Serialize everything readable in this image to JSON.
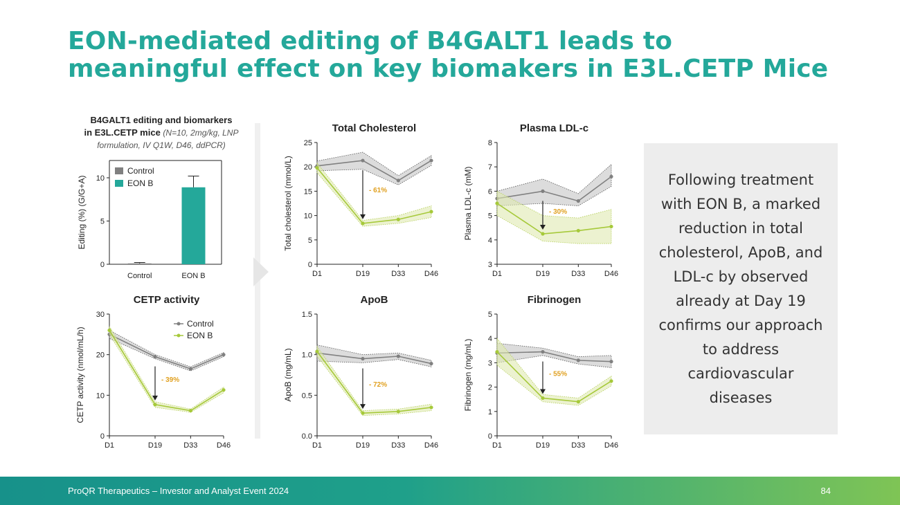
{
  "title": {
    "line1": "EON-mediated editing of B4GALT1 leads to",
    "line2": "meaningful effect on key biomakers in E3L.CETP Mice"
  },
  "bar_header": {
    "line1": "B4GALT1 editing and biomarkers",
    "line2_bold": "in E3L.CETP mice",
    "line2_italic": "(N=10, 2mg/kg, LNP",
    "line3": "formulation, IV Q1W, D46, ddPCR)"
  },
  "callout_text": "Following treatment with EON B, a marked reduction in total cholesterol, ApoB, and LDL-c by observed already at Day 19 confirms our approach to address cardiovascular diseases",
  "footer": {
    "text": "ProQR Therapeutics – Investor and Analyst Event 2024",
    "page": "84"
  },
  "colors": {
    "teal": "#24a89a",
    "control": "#808080",
    "eon": "#a6c93a",
    "pct": "#e0a020"
  },
  "chart_data": [
    {
      "id": "editing",
      "type": "bar",
      "title": "",
      "ylabel": "Editing (%) (G/G+A)",
      "categories": [
        "Control",
        "EON B"
      ],
      "values": [
        0.1,
        8.9
      ],
      "errors": [
        0.1,
        1.3
      ],
      "ylim": [
        0,
        12
      ],
      "yticks": [
        0,
        5,
        10
      ],
      "legend": [
        "Control",
        "EON B"
      ],
      "legend_position": "top-left"
    },
    {
      "id": "total-cholesterol",
      "type": "line",
      "title": "Total Cholesterol",
      "ylabel": "Total cholesterol (mmol/L)",
      "x": [
        "D1",
        "D19",
        "D33",
        "D46"
      ],
      "x_days": [
        1,
        19,
        33,
        46
      ],
      "ylim": [
        0,
        25
      ],
      "yticks": [
        0,
        5,
        10,
        15,
        20,
        25
      ],
      "series": [
        {
          "name": "Control",
          "values": [
            20.2,
            21.3,
            17.2,
            21.3
          ],
          "band": [
            [
              19.2,
              21.2
            ],
            [
              19.5,
              23.0
            ],
            [
              16.3,
              18.2
            ],
            [
              20.3,
              22.3
            ]
          ]
        },
        {
          "name": "EON B",
          "values": [
            19.8,
            8.4,
            9.2,
            10.8
          ],
          "band": [
            [
              18.8,
              20.8
            ],
            [
              7.8,
              9.0
            ],
            [
              8.4,
              10.0
            ],
            [
              9.6,
              12.0
            ]
          ]
        }
      ],
      "annotation": "- 61%"
    },
    {
      "id": "plasma-ldl",
      "type": "line",
      "title": "Plasma LDL-c",
      "ylabel": "Plasma LDL-c (mM)",
      "x": [
        "D1",
        "D19",
        "D33",
        "D46"
      ],
      "x_days": [
        1,
        19,
        33,
        46
      ],
      "ylim": [
        3,
        8
      ],
      "yticks": [
        3,
        4,
        5,
        6,
        7,
        8
      ],
      "series": [
        {
          "name": "Control",
          "values": [
            5.7,
            6.0,
            5.6,
            6.6
          ],
          "band": [
            [
              5.4,
              6.0
            ],
            [
              5.5,
              6.5
            ],
            [
              5.4,
              5.9
            ],
            [
              6.2,
              7.1
            ]
          ]
        },
        {
          "name": "EON B",
          "values": [
            5.5,
            4.25,
            4.38,
            4.55
          ],
          "band": [
            [
              5.0,
              6.0
            ],
            [
              3.95,
              5.0
            ],
            [
              3.85,
              4.9
            ],
            [
              3.85,
              5.25
            ]
          ]
        }
      ],
      "annotation": "- 30%"
    },
    {
      "id": "cetp",
      "type": "line",
      "title": "CETP activity",
      "ylabel": "CETP activity (nmol/mL/h)",
      "x": [
        "D1",
        "D19",
        "D33",
        "D46"
      ],
      "x_days": [
        1,
        19,
        33,
        46
      ],
      "ylim": [
        0,
        30
      ],
      "yticks": [
        0,
        10,
        20,
        30
      ],
      "series": [
        {
          "name": "Control",
          "values": [
            25.0,
            19.5,
            16.5,
            20.0
          ],
          "band": [
            [
              24.0,
              26.0
            ],
            [
              19.0,
              20.0
            ],
            [
              16.0,
              17.0
            ],
            [
              19.5,
              20.5
            ]
          ]
        },
        {
          "name": "EON B",
          "values": [
            26.0,
            7.7,
            6.2,
            11.3
          ],
          "band": [
            [
              25.0,
              27.0
            ],
            [
              7.0,
              8.4
            ],
            [
              5.8,
              6.6
            ],
            [
              10.6,
              12.0
            ]
          ]
        }
      ],
      "legend": [
        "Control",
        "EON B"
      ],
      "legend_position": "top-right",
      "annotation": "- 39%"
    },
    {
      "id": "apob",
      "type": "line",
      "title": "ApoB",
      "ylabel": "ApoB (mg/mL)",
      "x": [
        "D1",
        "D19",
        "D33",
        "D46"
      ],
      "x_days": [
        1,
        19,
        33,
        46
      ],
      "ylim": [
        0,
        1.5
      ],
      "yticks": [
        0.0,
        0.5,
        1.0,
        1.5
      ],
      "series": [
        {
          "name": "Control",
          "values": [
            1.02,
            0.95,
            0.98,
            0.89
          ],
          "band": [
            [
              0.92,
              1.12
            ],
            [
              0.9,
              1.0
            ],
            [
              0.94,
              1.02
            ],
            [
              0.85,
              0.93
            ]
          ]
        },
        {
          "name": "EON B",
          "values": [
            1.04,
            0.28,
            0.3,
            0.35
          ],
          "band": [
            [
              0.98,
              1.1
            ],
            [
              0.25,
              0.31
            ],
            [
              0.27,
              0.33
            ],
            [
              0.31,
              0.39
            ]
          ]
        }
      ],
      "annotation": "- 72%"
    },
    {
      "id": "fibrinogen",
      "type": "line",
      "title": "Fibrinogen",
      "ylabel": "Fibrinogen (mg/mL)",
      "x": [
        "D1",
        "D19",
        "D33",
        "D46"
      ],
      "x_days": [
        1,
        19,
        33,
        46
      ],
      "ylim": [
        0,
        5
      ],
      "yticks": [
        0,
        1,
        2,
        3,
        4,
        5
      ],
      "series": [
        {
          "name": "Control",
          "values": [
            3.4,
            3.45,
            3.1,
            3.05
          ],
          "band": [
            [
              3.0,
              3.8
            ],
            [
              3.3,
              3.6
            ],
            [
              2.95,
              3.25
            ],
            [
              2.8,
              3.3
            ]
          ]
        },
        {
          "name": "EON B",
          "values": [
            3.45,
            1.55,
            1.4,
            2.25
          ],
          "band": [
            [
              2.9,
              4.0
            ],
            [
              1.4,
              1.7
            ],
            [
              1.25,
              1.55
            ],
            [
              2.05,
              2.45
            ]
          ]
        }
      ],
      "annotation": "- 55%"
    }
  ]
}
